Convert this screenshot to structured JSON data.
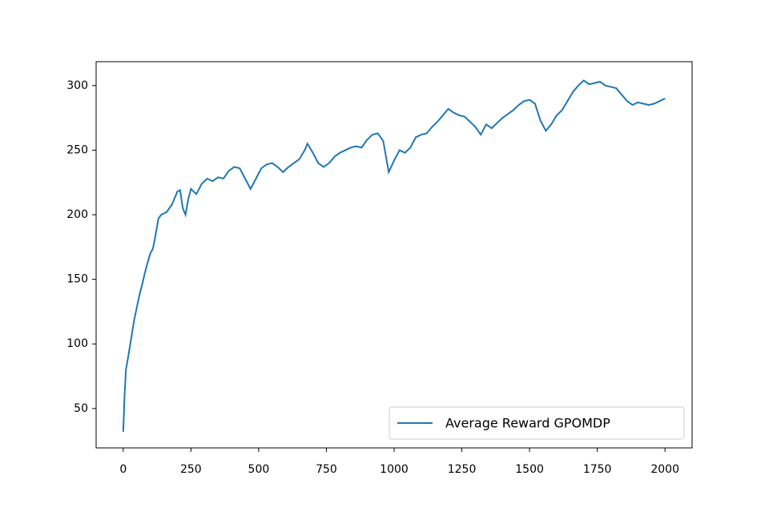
{
  "chart_data": {
    "type": "line",
    "x": [
      0,
      5,
      10,
      20,
      30,
      40,
      50,
      60,
      70,
      80,
      90,
      100,
      110,
      120,
      130,
      140,
      160,
      180,
      200,
      210,
      220,
      230,
      240,
      250,
      270,
      290,
      310,
      330,
      350,
      370,
      390,
      410,
      430,
      450,
      470,
      490,
      510,
      530,
      550,
      570,
      590,
      610,
      630,
      650,
      670,
      680,
      700,
      720,
      740,
      760,
      780,
      800,
      820,
      840,
      860,
      880,
      900,
      920,
      940,
      960,
      980,
      1000,
      1020,
      1040,
      1060,
      1080,
      1100,
      1120,
      1140,
      1160,
      1180,
      1200,
      1220,
      1240,
      1260,
      1280,
      1300,
      1320,
      1340,
      1360,
      1380,
      1400,
      1420,
      1440,
      1460,
      1480,
      1500,
      1520,
      1540,
      1560,
      1580,
      1600,
      1620,
      1640,
      1660,
      1680,
      1700,
      1720,
      1740,
      1760,
      1780,
      1800,
      1820,
      1840,
      1860,
      1880,
      1900,
      1920,
      1940,
      1960,
      1980,
      2000
    ],
    "series": [
      {
        "name": "Average Reward GPOMDP",
        "color": "#1f77b4",
        "values": [
          32,
          60,
          80,
          92,
          105,
          118,
          128,
          138,
          146,
          155,
          163,
          170,
          174,
          185,
          197,
          200,
          202,
          208,
          218,
          219,
          205,
          200,
          212,
          220,
          216,
          224,
          228,
          226,
          229,
          228,
          234,
          237,
          236,
          228,
          220,
          228,
          236,
          239,
          240,
          237,
          233,
          237,
          240,
          243,
          250,
          255,
          248,
          240,
          237,
          240,
          245,
          248,
          250,
          252,
          253,
          252,
          258,
          262,
          263,
          257,
          233,
          242,
          250,
          248,
          252,
          260,
          262,
          263,
          268,
          272,
          277,
          282,
          279,
          277,
          276,
          272,
          268,
          262,
          270,
          267,
          271,
          275,
          278,
          281,
          285,
          288,
          289,
          286,
          273,
          265,
          270,
          277,
          281,
          288,
          295,
          300,
          304,
          301,
          302,
          303,
          300,
          299,
          298,
          293,
          288,
          285,
          287,
          286,
          285,
          286,
          288,
          290
        ]
      }
    ],
    "xlim": [
      -100,
      2100
    ],
    "ylim": [
      19.5,
      318.5
    ],
    "xticks": [
      0,
      250,
      500,
      750,
      1000,
      1250,
      1500,
      1750,
      2000
    ],
    "yticks": [
      50,
      100,
      150,
      200,
      250,
      300
    ],
    "legend": "lower right"
  }
}
